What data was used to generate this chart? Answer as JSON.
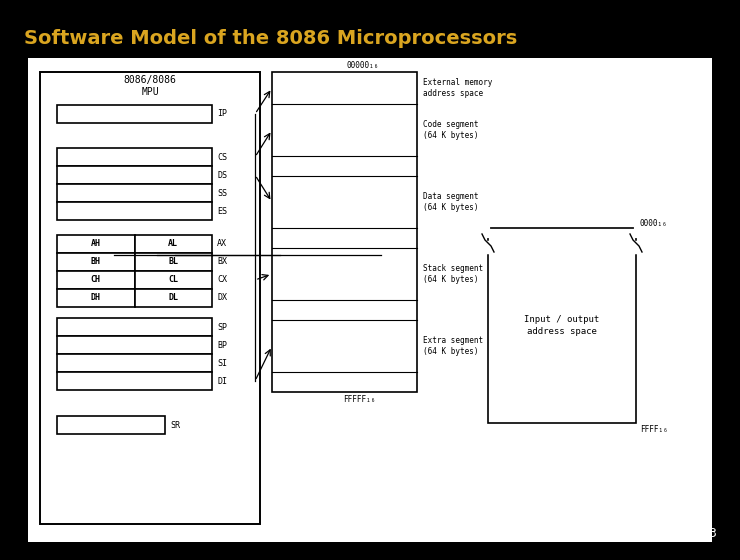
{
  "title": "Software Model of the 8086 Microprocessors",
  "title_color": "#DAA520",
  "bg_color": "#000000",
  "page_number": "3",
  "mpu_label": "8086/8086\nMPU",
  "seg_regs": [
    "CS",
    "DS",
    "SS",
    "ES"
  ],
  "gen_regs": [
    [
      "AH",
      "AL",
      "AX"
    ],
    [
      "BH",
      "BL",
      "BX"
    ],
    [
      "CH",
      "CL",
      "CX"
    ],
    [
      "DH",
      "DL",
      "DX"
    ]
  ],
  "ptr_regs": [
    "SP",
    "BP",
    "SI",
    "DI"
  ],
  "memory_labels": [
    "External memory\naddress space",
    "Code segment\n(64 K bytes)",
    "Data segment\n(64 K bytes)",
    "Stack segment\n(64 K bytes)",
    "Extra segment\n(64 K bytes)"
  ],
  "mem_addr_top": "00000",
  "mem_addr_bot": "FFFFF",
  "io_addr_top": "0000",
  "io_addr_bot": "FFFF",
  "io_label": "Input / output\naddress space"
}
